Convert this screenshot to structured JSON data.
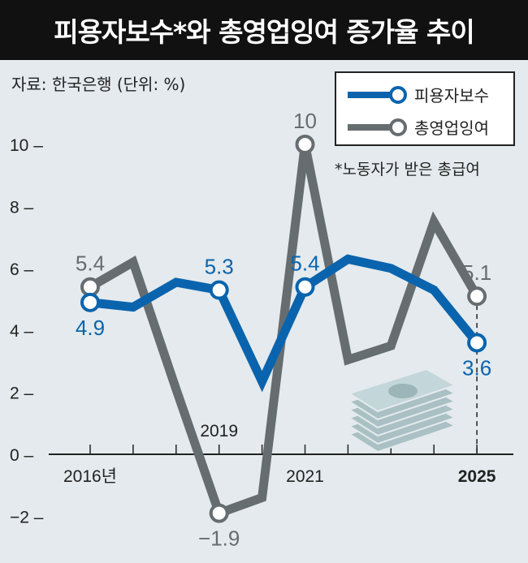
{
  "title": "피용자보수*와 총영업잉여 증가율 추이",
  "source": "자료: 한국은행 (단위: %)",
  "footnote": "*노동자가 받은 총급여",
  "chart_data": {
    "type": "line",
    "title": "피용자보수*와 총영업잉여 증가율 추이",
    "x": [
      2016,
      2017,
      2018,
      2019,
      2020,
      2021,
      2022,
      2023,
      2024,
      2025
    ],
    "xtick_labels": [
      {
        "year": 2016,
        "label": "2016년"
      },
      {
        "year": 2019,
        "label": "2019"
      },
      {
        "year": 2021,
        "label": "2021"
      },
      {
        "year": 2025,
        "label": "2025"
      }
    ],
    "yticks": [
      {
        "v": 10,
        "label": "10"
      },
      {
        "v": 8,
        "label": "8"
      },
      {
        "v": 6,
        "label": "6"
      },
      {
        "v": 4,
        "label": "4"
      },
      {
        "v": 2,
        "label": "2"
      },
      {
        "v": 0,
        "label": "0"
      },
      {
        "v": -2,
        "label": "−2"
      }
    ],
    "ylim": [
      -2.6,
      10.5
    ],
    "series": [
      {
        "name": "피용자보수",
        "color": "#0a64ad",
        "values": [
          4.9,
          4.75,
          5.55,
          5.3,
          2.35,
          5.4,
          6.3,
          6.0,
          5.3,
          3.6
        ],
        "labels": [
          {
            "i": 0,
            "text": "4.9",
            "pos": "below"
          },
          {
            "i": 3,
            "text": "5.3",
            "pos": "above"
          },
          {
            "i": 5,
            "text": "5.4",
            "pos": "above"
          },
          {
            "i": 9,
            "text": "3.6",
            "pos": "below"
          }
        ]
      },
      {
        "name": "총영업잉여",
        "color": "#666d70",
        "values": [
          5.4,
          6.2,
          2.1,
          -1.9,
          -1.4,
          10,
          3.05,
          3.5,
          7.5,
          5.1
        ],
        "labels": [
          {
            "i": 0,
            "text": "5.4",
            "pos": "above"
          },
          {
            "i": 3,
            "text": "−1.9",
            "pos": "below"
          },
          {
            "i": 5,
            "text": "10",
            "pos": "above"
          },
          {
            "i": 9,
            "text": "5.1",
            "pos": "above"
          }
        ]
      }
    ],
    "legend": "top-right"
  }
}
